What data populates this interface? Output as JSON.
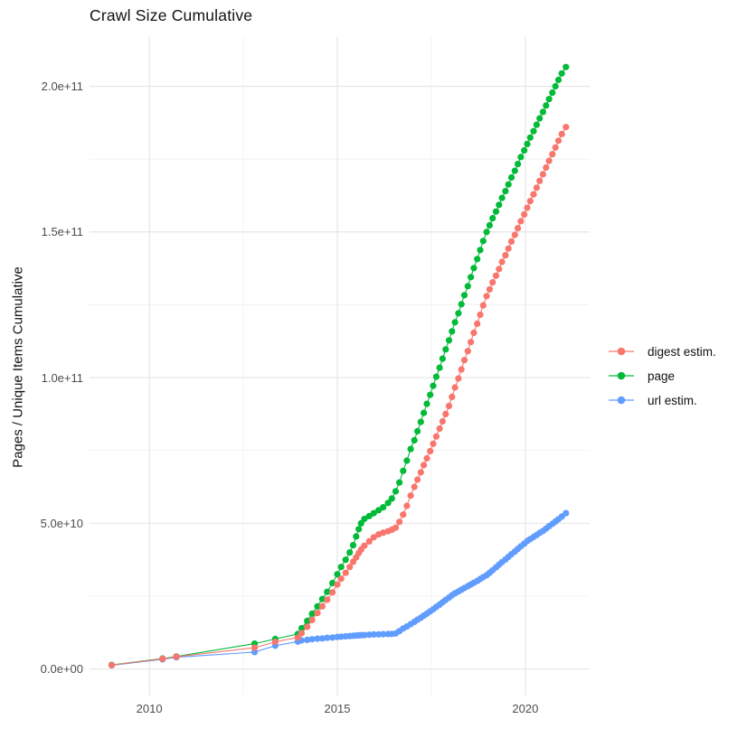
{
  "title": "Crawl Size Cumulative",
  "y_axis": {
    "title": "Pages / Unique Items Cumulative",
    "tick_labels": [
      "0.0e+00",
      "5.0e+10",
      "1.0e+11",
      "1.5e+11",
      "2.0e+11"
    ],
    "tick_values_billions": [
      0,
      50,
      100,
      150,
      200
    ],
    "minor_tick_values_billions": [
      25,
      75,
      125,
      175
    ]
  },
  "x_axis": {
    "tick_labels": [
      "2010",
      "2015",
      "2020"
    ],
    "tick_values": [
      2010,
      2015,
      2020
    ],
    "minor_tick_values": [
      2012.5,
      2017.5
    ]
  },
  "legend": {
    "items": [
      {
        "label": "digest estim.",
        "color": "#F8766D",
        "series": "digest estim."
      },
      {
        "label": "page",
        "color": "#00BA38",
        "series": "page"
      },
      {
        "label": "url estim.",
        "color": "#619CFF",
        "series": "url estim."
      }
    ]
  },
  "colors": {
    "digest": "#F8766D",
    "page": "#00BA38",
    "url": "#619CFF",
    "grid_major": "#e4e4e4",
    "grid_minor": "#efefef",
    "axis_text": "#4d4d4d",
    "text": "#111111",
    "background": "#ffffff"
  },
  "chart_data": {
    "type": "line",
    "title": "Crawl Size Cumulative",
    "xlabel": "",
    "ylabel": "Pages / Unique Items Cumulative",
    "value_unit": "billions of pages / unique items (1e9)",
    "grid": true,
    "legend_position": "right",
    "xlim": [
      2008.41,
      2021.71
    ],
    "ylim_billions": [
      -9.1,
      216.9
    ],
    "x_years": [
      2009.0,
      2010.35,
      2010.72,
      2012.8,
      2013.35,
      2013.95,
      2014.05,
      2014.2,
      2014.33,
      2014.47,
      2014.6,
      2014.73,
      2014.87,
      2015.0,
      2015.1,
      2015.22,
      2015.33,
      2015.42,
      2015.5,
      2015.57,
      2015.63,
      2015.72,
      2015.85,
      2015.97,
      2016.1,
      2016.22,
      2016.35,
      2016.45,
      2016.55,
      2016.65,
      2016.75,
      2016.85,
      2016.95,
      2017.05,
      2017.13,
      2017.22,
      2017.3,
      2017.38,
      2017.47,
      2017.55,
      2017.63,
      2017.72,
      2017.8,
      2017.88,
      2017.97,
      2018.05,
      2018.13,
      2018.22,
      2018.3,
      2018.38,
      2018.47,
      2018.55,
      2018.63,
      2018.72,
      2018.8,
      2018.88,
      2018.97,
      2019.05,
      2019.13,
      2019.22,
      2019.3,
      2019.38,
      2019.47,
      2019.55,
      2019.63,
      2019.72,
      2019.8,
      2019.88,
      2019.97,
      2020.05,
      2020.13,
      2020.22,
      2020.3,
      2020.38,
      2020.47,
      2020.55,
      2020.63,
      2020.72,
      2020.8,
      2020.88,
      2020.97,
      2021.08
    ],
    "series": [
      {
        "name": "url estim.",
        "color": "#619CFF",
        "values_billions": [
          1.25,
          3.3,
          4.0,
          5.8,
          8.0,
          9.4,
          9.8,
          10.0,
          10.2,
          10.4,
          10.5,
          10.7,
          10.8,
          11.0,
          11.1,
          11.2,
          11.3,
          11.4,
          11.5,
          11.55,
          11.6,
          11.65,
          11.75,
          11.85,
          11.9,
          11.95,
          12.0,
          12.05,
          12.2,
          13.0,
          13.9,
          14.6,
          15.4,
          16.2,
          16.9,
          17.6,
          18.3,
          19.0,
          19.8,
          20.5,
          21.3,
          22.1,
          22.9,
          23.7,
          24.5,
          25.3,
          26.0,
          26.6,
          27.2,
          27.8,
          28.4,
          29.0,
          29.6,
          30.2,
          30.9,
          31.5,
          32.2,
          33.0,
          33.9,
          34.9,
          35.8,
          36.7,
          37.6,
          38.5,
          39.4,
          40.3,
          41.2,
          42.1,
          43.0,
          43.9,
          44.6,
          45.3,
          46.0,
          46.7,
          47.4,
          48.2,
          49.0,
          49.8,
          50.6,
          51.4,
          52.3,
          53.5
        ]
      },
      {
        "name": "page",
        "color": "#00BA38",
        "values_billions": [
          1.4,
          3.6,
          4.3,
          8.7,
          10.3,
          12,
          14,
          16.5,
          19,
          21.5,
          24,
          26.5,
          29.5,
          32.5,
          35,
          37.5,
          40,
          42.5,
          45.5,
          48,
          50,
          51.5,
          52.5,
          53.5,
          54.5,
          55.5,
          57,
          58.5,
          61,
          64,
          68,
          71.5,
          75.5,
          78.5,
          81.6,
          84.8,
          87.9,
          91,
          94.1,
          97.2,
          100.3,
          103.4,
          106.5,
          109.7,
          112.8,
          115.9,
          119,
          122.1,
          125.2,
          128.3,
          131.4,
          134.5,
          137.6,
          140.7,
          143.8,
          146.9,
          150,
          152.3,
          154.7,
          157,
          159.3,
          161.7,
          164,
          166.3,
          168.7,
          171,
          173.3,
          175.7,
          178,
          180.2,
          182.4,
          184.6,
          186.8,
          189,
          191.2,
          193.4,
          195.6,
          197.8,
          200,
          202.2,
          204.4,
          206.6
        ]
      },
      {
        "name": "digest estim.",
        "color": "#F8766D",
        "values_billions": [
          1.35,
          3.5,
          4.2,
          7.3,
          9.3,
          10.8,
          12.3,
          14.5,
          16.8,
          19.2,
          21.5,
          23.8,
          26.3,
          29,
          31,
          33,
          35,
          36.8,
          38.3,
          39.8,
          41,
          42.3,
          43.8,
          45.2,
          46.2,
          46.8,
          47.3,
          47.8,
          48.5,
          50.5,
          53,
          56,
          59.5,
          62.5,
          65,
          67.5,
          70,
          72.3,
          74.8,
          77.3,
          79.8,
          82.5,
          85,
          87.5,
          90.3,
          93.4,
          96.6,
          99.7,
          102.8,
          106,
          109.1,
          112.2,
          115.4,
          118.5,
          121.6,
          124.8,
          128,
          130.3,
          132.7,
          135,
          137.3,
          139.7,
          142,
          144.3,
          146.7,
          149,
          151.3,
          153.7,
          156,
          158.3,
          160.6,
          162.9,
          165.2,
          167.5,
          169.8,
          172.1,
          174.4,
          176.7,
          179,
          181.3,
          183.6,
          186
        ]
      }
    ]
  }
}
